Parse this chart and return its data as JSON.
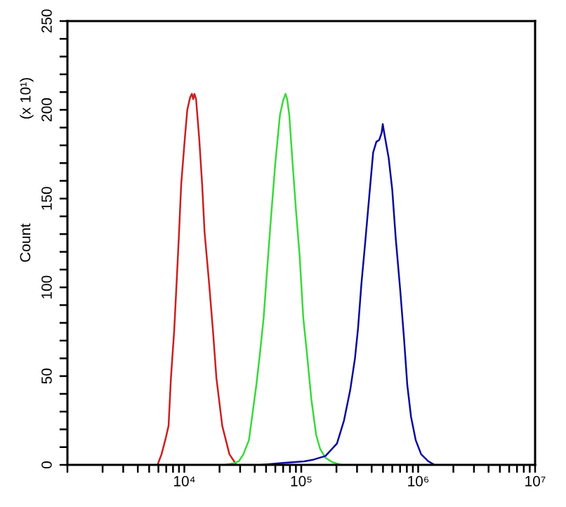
{
  "chart_data": {
    "type": "line",
    "ylabel": "Count",
    "annotations": [
      "(x 10¹)"
    ],
    "log": "x",
    "xlim": [
      1000,
      10000000
    ],
    "ylim": [
      0,
      250
    ],
    "xticks": [
      {
        "value": 1000,
        "label": null
      },
      {
        "value": 2000,
        "label": null
      },
      {
        "value": 3000,
        "label": null
      },
      {
        "value": 4000,
        "label": null
      },
      {
        "value": 5000,
        "label": null
      },
      {
        "value": 6000,
        "label": null
      },
      {
        "value": 7000,
        "label": null
      },
      {
        "value": 8000,
        "label": null
      },
      {
        "value": 9000,
        "label": null
      },
      {
        "value": 10000,
        "label": "10⁴"
      },
      {
        "value": 20000,
        "label": null
      },
      {
        "value": 30000,
        "label": null
      },
      {
        "value": 40000,
        "label": null
      },
      {
        "value": 50000,
        "label": null
      },
      {
        "value": 60000,
        "label": null
      },
      {
        "value": 70000,
        "label": null
      },
      {
        "value": 80000,
        "label": null
      },
      {
        "value": 90000,
        "label": null
      },
      {
        "value": 100000,
        "label": "10⁵"
      },
      {
        "value": 200000,
        "label": null
      },
      {
        "value": 300000,
        "label": null
      },
      {
        "value": 400000,
        "label": null
      },
      {
        "value": 500000,
        "label": null
      },
      {
        "value": 600000,
        "label": null
      },
      {
        "value": 700000,
        "label": null
      },
      {
        "value": 800000,
        "label": null
      },
      {
        "value": 900000,
        "label": null
      },
      {
        "value": 1000000,
        "label": "10⁶"
      },
      {
        "value": 2000000,
        "label": null
      },
      {
        "value": 3000000,
        "label": null
      },
      {
        "value": 4000000,
        "label": null
      },
      {
        "value": 5000000,
        "label": null
      },
      {
        "value": 6000000,
        "label": null
      },
      {
        "value": 7000000,
        "label": null
      },
      {
        "value": 8000000,
        "label": null
      },
      {
        "value": 9000000,
        "label": null
      },
      {
        "value": 10000000,
        "label": "10⁷"
      }
    ],
    "yticks": [
      0,
      {
        "value": 10,
        "label": null
      },
      {
        "value": 20,
        "label": null
      },
      {
        "value": 30,
        "label": null
      },
      {
        "value": 40,
        "label": null
      },
      50,
      {
        "value": 60,
        "label": null
      },
      {
        "value": 70,
        "label": null
      },
      {
        "value": 80,
        "label": null
      },
      {
        "value": 90,
        "label": null
      },
      100,
      {
        "value": 110,
        "label": null
      },
      {
        "value": 120,
        "label": null
      },
      {
        "value": 130,
        "label": null
      },
      {
        "value": 140,
        "label": null
      },
      150,
      {
        "value": 160,
        "label": null
      },
      {
        "value": 170,
        "label": null
      },
      {
        "value": 180,
        "label": null
      },
      {
        "value": 190,
        "label": null
      },
      200,
      {
        "value": 210,
        "label": null
      },
      {
        "value": 220,
        "label": null
      },
      {
        "value": 230,
        "label": null
      },
      {
        "value": 240,
        "label": null
      },
      250
    ],
    "series": [
      {
        "color": "#cc1f1f",
        "x": [
          5900,
          6380,
          6930,
          7330,
          7680,
          8180,
          8580,
          8970,
          9400,
          10100,
          10600,
          11200,
          11600,
          11900,
          12200,
          12600,
          13400,
          14200,
          14900,
          16300,
          17600,
          18800,
          21100,
          24300,
          27900
        ],
        "values": [
          0,
          6,
          15,
          22,
          49,
          75,
          102,
          128,
          158,
          184,
          200,
          207,
          209,
          206,
          209,
          206,
          184,
          158,
          131,
          102,
          75,
          49,
          22,
          6,
          0
        ]
      },
      {
        "color": "#3ad93a",
        "x": [
          22100,
          26700,
          29200,
          32000,
          35700,
          38500,
          41300,
          44200,
          47700,
          50800,
          55200,
          60000,
          65700,
          69800,
          73300,
          75800,
          79000,
          84300,
          90000,
          96800,
          104000,
          111000,
          122000,
          134000,
          145000,
          161000,
          185000,
          220000
        ],
        "values": [
          0,
          1,
          2,
          6,
          14,
          30,
          45,
          62,
          83,
          108,
          140,
          170,
          197,
          205,
          209,
          206,
          197,
          170,
          144,
          118,
          83,
          65,
          37,
          17,
          9,
          4,
          1.5,
          0
        ]
      },
      {
        "color": "#0a0a99",
        "x": [
          45500,
          67000,
          106000,
          128000,
          161000,
          202000,
          232000,
          262000,
          288000,
          306000,
          327000,
          352000,
          380000,
          412000,
          439000,
          464000,
          487000,
          498000,
          509000,
          559000,
          600000,
          642000,
          703000,
          757000,
          807000,
          869000,
          952000,
          1060000,
          1220000,
          1380000
        ],
        "values": [
          0,
          1,
          2,
          3,
          5,
          12,
          25,
          42,
          60,
          77,
          102,
          125,
          150,
          176,
          182,
          183,
          187,
          192,
          188,
          173,
          155,
          128,
          98,
          71,
          45,
          27,
          14,
          6,
          2,
          0
        ]
      }
    ]
  }
}
